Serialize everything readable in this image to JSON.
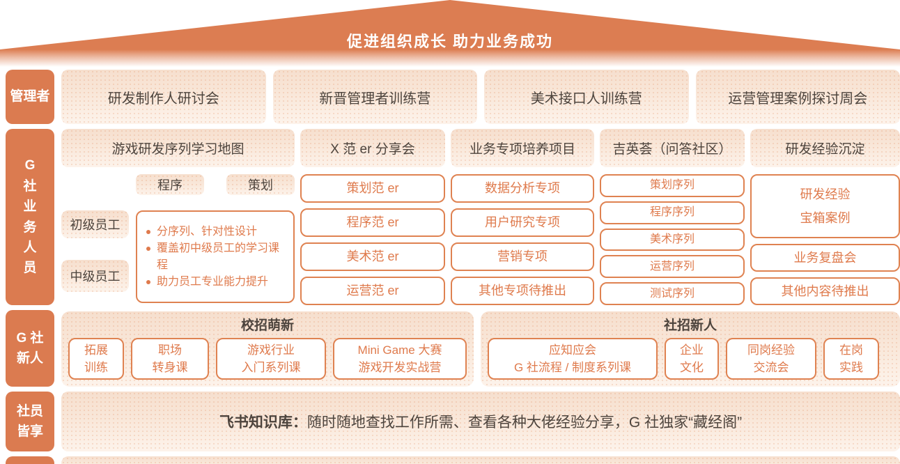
{
  "palette": {
    "orange_solid": "#DB7B50",
    "orange_border": "#DF8251",
    "orange_text": "#DF7A4C",
    "peach_top": "#F6DFCE",
    "peach_bottom": "#FDF3EB",
    "dark_text": "#4D443D",
    "white": "#FFFFFF"
  },
  "roof": {
    "title": "促进组织成长 助力业务成功"
  },
  "managers": {
    "label": "管理者",
    "items": [
      "研发制作人研讨会",
      "新晋管理者训练营",
      "美术接口人训练营",
      "运营管理案例探讨周会"
    ]
  },
  "business": {
    "label_lines": [
      "G",
      "社",
      "业",
      "务",
      "人",
      "员"
    ],
    "headers": [
      "游戏研发序列学习地图",
      "X 范 er 分享会",
      "业务专项培养项目",
      "吉英荟（问答社区）",
      "研发经验沉淀"
    ],
    "map": {
      "tabs": [
        "程序",
        "策划"
      ],
      "levels": [
        "初级员工",
        "中级员工"
      ],
      "bullets": [
        "分序列、针对性设计",
        "覆盖初中级员工的学习课程",
        "助力员工专业能力提升"
      ]
    },
    "fan_er": [
      "策划范 er",
      "程序范 er",
      "美术范 er",
      "运营范 er"
    ],
    "special": [
      "数据分析专项",
      "用户研究专项",
      "营销专项",
      "其他专项待推出"
    ],
    "qa_series": [
      "策划序列",
      "程序序列",
      "美术序列",
      "运营序列",
      "测试序列"
    ],
    "experience": {
      "treasure_lines": [
        "研发经验",
        "宝箱案例"
      ],
      "review": "业务复盘会",
      "more": "其他内容待推出"
    }
  },
  "newcomers": {
    "label_lines": [
      "G 社",
      "新人"
    ],
    "campus": {
      "title": "校招萌新",
      "items": [
        [
          "拓展",
          "训练"
        ],
        [
          "职场",
          "转身课"
        ],
        [
          "游戏行业",
          "入门系列课"
        ],
        [
          "Mini Game 大赛",
          "游戏开发实战营"
        ]
      ]
    },
    "social": {
      "title": "社招新人",
      "items": [
        [
          "应知应会",
          "G 社流程 / 制度系列课"
        ],
        [
          "企业",
          "文化"
        ],
        [
          "同岗经验",
          "交流会"
        ],
        [
          "在岗",
          "实践"
        ]
      ]
    }
  },
  "everyone": {
    "label_lines": [
      "社员",
      "皆享"
    ],
    "lead": "飞书知识库：",
    "text": "随时随地查找工作所需、查看各种大佬经验分享，G 社独家“藏经阁”"
  }
}
